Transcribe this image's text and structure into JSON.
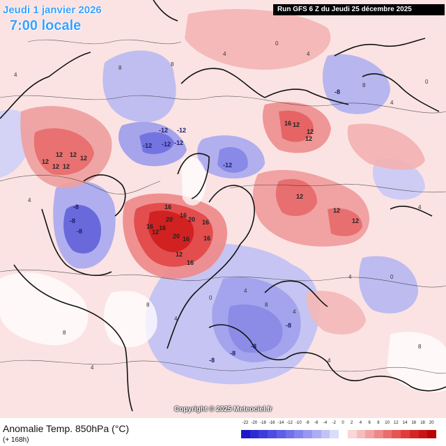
{
  "header": {
    "date": "Jeudi 1 janvier 2026",
    "time": "7:00 locale",
    "run": "Run GFS 6 Z du Jeudi 25 décembre 2025"
  },
  "copyright": "Copyright © 2025 Meteociel.fr",
  "footer": {
    "variable": "Anomalie Temp. 850hPa (°C)",
    "lead": "(+ 168h)"
  },
  "legend": {
    "labels": [
      "-22",
      "-20",
      "-18",
      "-16",
      "-14",
      "-12",
      "-10",
      "-8",
      "-6",
      "-4",
      "-2",
      "0",
      "2",
      "4",
      "6",
      "8",
      "10",
      "12",
      "14",
      "16",
      "18",
      "20"
    ],
    "colors": [
      "#1c16c8",
      "#2c2cd4",
      "#3c3cdd",
      "#4c4ce3",
      "#5e5ee8",
      "#7070ec",
      "#8484ef",
      "#9898f2",
      "#acacf4",
      "#c2c2f7",
      "#dcdcfa",
      "#ffffff",
      "#fad6d6",
      "#f6bcbc",
      "#f2a2a2",
      "#ee8888",
      "#ea6e6e",
      "#e65454",
      "#e23a3a",
      "#d62424",
      "#c81414",
      "#b80404"
    ]
  },
  "map": {
    "warm_labels": [
      "12",
      "12",
      "12",
      "12",
      "12",
      "16",
      "12",
      "12",
      "12",
      "12",
      "16",
      "20",
      "16",
      "20",
      "16",
      "16",
      "16",
      "20",
      "16",
      "16",
      "12",
      "12",
      "16",
      "12",
      "12",
      "12"
    ],
    "cold_labels": [
      "-12",
      "-12",
      "-12",
      "-12",
      "-12",
      "-12",
      "-8",
      "-8",
      "-8",
      "-8",
      "-8",
      "-8",
      "-8",
      "-8"
    ],
    "contour_labels": [
      "4",
      "8",
      "8",
      "4",
      "0",
      "4",
      "8",
      "4",
      "0",
      "4",
      "8",
      "4",
      "0",
      "4",
      "8",
      "4",
      "4",
      "0",
      "4",
      "8",
      "4",
      "8",
      "4"
    ]
  }
}
